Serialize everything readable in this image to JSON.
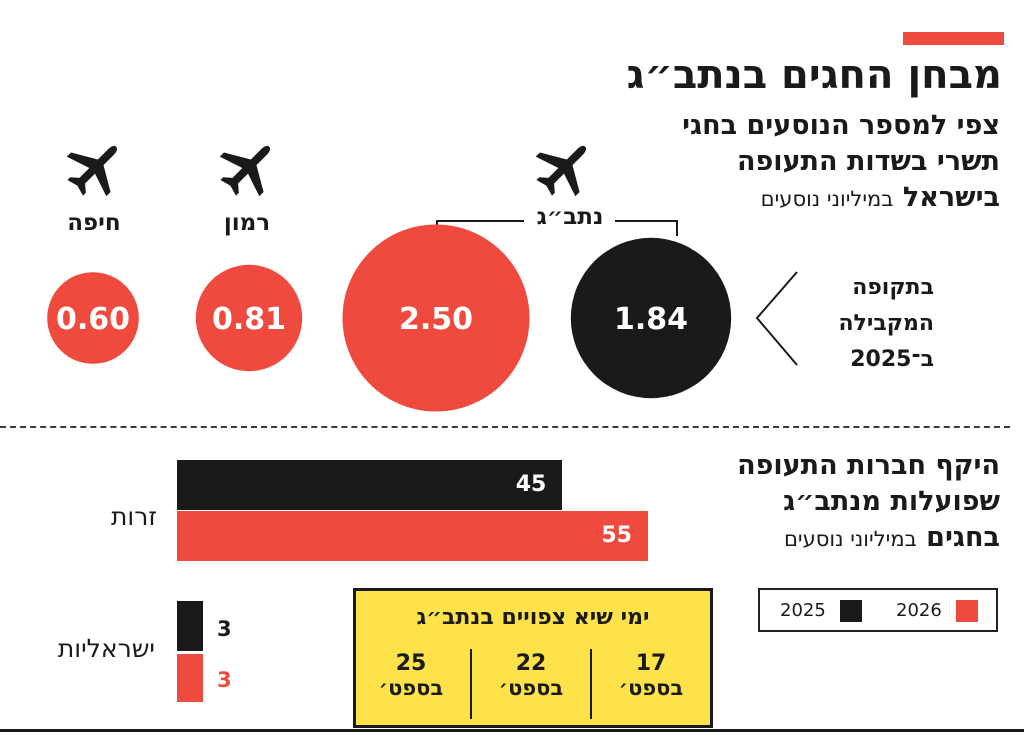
{
  "title": "מבחן החגים בנתב״ג",
  "bubbles_section": {
    "subtitle_lines": [
      "צפי למספר הנוסעים בחגי",
      "תשרי בשדות התעופה"
    ],
    "subtitle_last_bold": "בישראל",
    "subtitle_unit": "במיליוני נוסעים",
    "period_lines": [
      "בתקופה",
      "המקבילה",
      "ב־2025"
    ],
    "natbag_label": "נתב״ג",
    "airports": [
      {
        "name": "חיפה",
        "value": "0.60"
      },
      {
        "name": "רמון",
        "value": "0.81"
      }
    ],
    "natbag_values": {
      "2026": "2.50",
      "2025": "1.84"
    }
  },
  "bars_section": {
    "subtitle_lines": [
      "היקף חברות התעופה",
      "שפועלות מנתב״ג"
    ],
    "subtitle_last_bold": "בחגים",
    "subtitle_unit": "במיליוני נוסעים",
    "rows": [
      {
        "label": "זרות",
        "v2025": "45",
        "v2026": "55"
      },
      {
        "label": "ישראליות",
        "v2025": "3",
        "v2026": "3"
      }
    ]
  },
  "legend": {
    "label_2025": "2025",
    "label_2026": "2026"
  },
  "holidays": {
    "title": "ימי שיא צפויים בנתב״ג",
    "days": [
      {
        "day": "17",
        "month": "בספט׳"
      },
      {
        "day": "22",
        "month": "בספט׳"
      },
      {
        "day": "25",
        "month": "בספט׳"
      }
    ]
  },
  "colors": {
    "y2026": "#ee4b3e",
    "y2025": "#1a1a1a",
    "highlight": "#fde24a"
  },
  "chart_data": [
    {
      "type": "bubble",
      "categories": [
        "חיפה",
        "רמון",
        "נתב״ג",
        "נתב״ג"
      ],
      "values": [
        0.6,
        0.81,
        2.5,
        1.84
      ],
      "series": [
        {
          "name": "2026",
          "values": [
            0.6,
            0.81,
            2.5
          ]
        },
        {
          "name": "2025",
          "values": [
            null,
            null,
            1.84
          ]
        }
      ]
    },
    {
      "type": "bar",
      "categories": [
        "זרות",
        "ישראליות"
      ],
      "series": [
        {
          "name": "2025",
          "values": [
            45,
            3
          ]
        },
        {
          "name": "2026",
          "values": [
            55,
            3
          ]
        }
      ]
    }
  ]
}
